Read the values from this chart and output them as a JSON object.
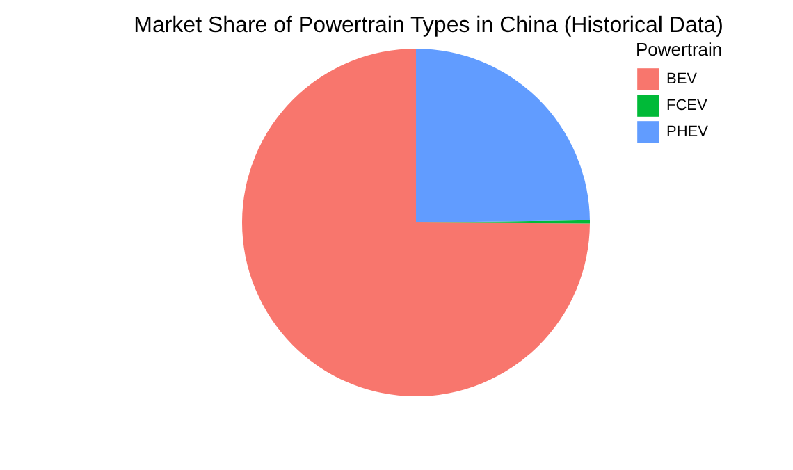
{
  "chart_data": {
    "type": "pie",
    "title": "Market Share of Powertrain Types in China (Historical Data)",
    "legend_title": "Powertrain",
    "legend": "right",
    "categories": [
      "BEV",
      "FCEV",
      "PHEV"
    ],
    "values": [
      74.9,
      0.3,
      24.8
    ],
    "colors": [
      "#f8766d",
      "#00ba38",
      "#619cff"
    ]
  }
}
